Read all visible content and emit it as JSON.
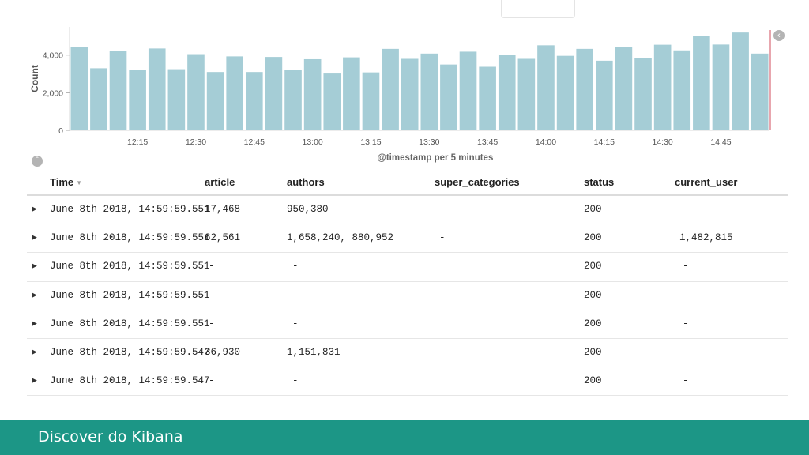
{
  "chart_data": {
    "type": "bar",
    "ylabel": "Count",
    "xlabel": "@timestamp per 5 minutes",
    "ylim": [
      0,
      5500
    ],
    "yticks": [
      0,
      2000,
      4000
    ],
    "ytick_labels": [
      "0",
      "2,000",
      "4,000"
    ],
    "xtick_labels": [
      "12:15",
      "12:30",
      "12:45",
      "13:00",
      "13:15",
      "13:30",
      "13:45",
      "14:00",
      "14:15",
      "14:30",
      "14:45"
    ],
    "xtick_bar_index": [
      3,
      6,
      9,
      12,
      15,
      18,
      21,
      24,
      27,
      30,
      33
    ],
    "values": [
      4420,
      3300,
      4200,
      3200,
      4350,
      3250,
      4050,
      3100,
      3930,
      3100,
      3900,
      3200,
      3780,
      3020,
      3880,
      3080,
      4330,
      3800,
      4080,
      3500,
      4180,
      3380,
      4020,
      3800,
      4520,
      3960,
      4330,
      3700,
      4430,
      3860,
      4550,
      4250,
      5000,
      4560,
      5200,
      4080
    ]
  },
  "colors": {
    "bar": "#a5cdd6",
    "accent": "#1c9686",
    "marker": "#e8a6ae"
  },
  "table": {
    "columns": [
      "Time",
      "article",
      "authors",
      "super_categories",
      "status",
      "current_user"
    ],
    "rows": [
      [
        "June 8th 2018, 14:59:59.551",
        "17,468",
        "950,380",
        "-",
        "200",
        "-"
      ],
      [
        "June 8th 2018, 14:59:59.551",
        "62,561",
        "1,658,240, 880,952",
        "-",
        "200",
        "1,482,815"
      ],
      [
        "June 8th 2018, 14:59:59.551",
        "-",
        "-",
        "",
        "200",
        "-"
      ],
      [
        "June 8th 2018, 14:59:59.551",
        "-",
        "-",
        "",
        "200",
        "-"
      ],
      [
        "June 8th 2018, 14:59:59.551",
        "-",
        "-",
        "",
        "200",
        "-"
      ],
      [
        "June 8th 2018, 14:59:59.547",
        "36,930",
        "1,151,831",
        "-",
        "200",
        "-"
      ],
      [
        "June 8th 2018, 14:59:59.547",
        "-",
        "-",
        "",
        "200",
        "-"
      ]
    ]
  },
  "icons": {
    "collapse": "chevron-up-icon",
    "nav_back": "chevron-left-icon",
    "expand": "caret-right-icon",
    "sort": "sort-down-icon"
  },
  "footer": {
    "title": "Discover do Kibana"
  }
}
